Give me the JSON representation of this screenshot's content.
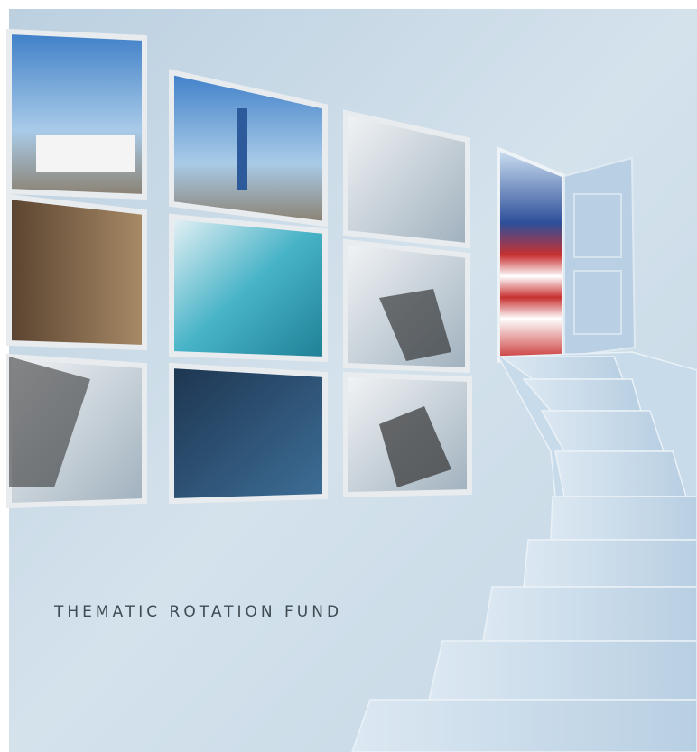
{
  "title": "THEMATIC ROTATION FUND"
}
